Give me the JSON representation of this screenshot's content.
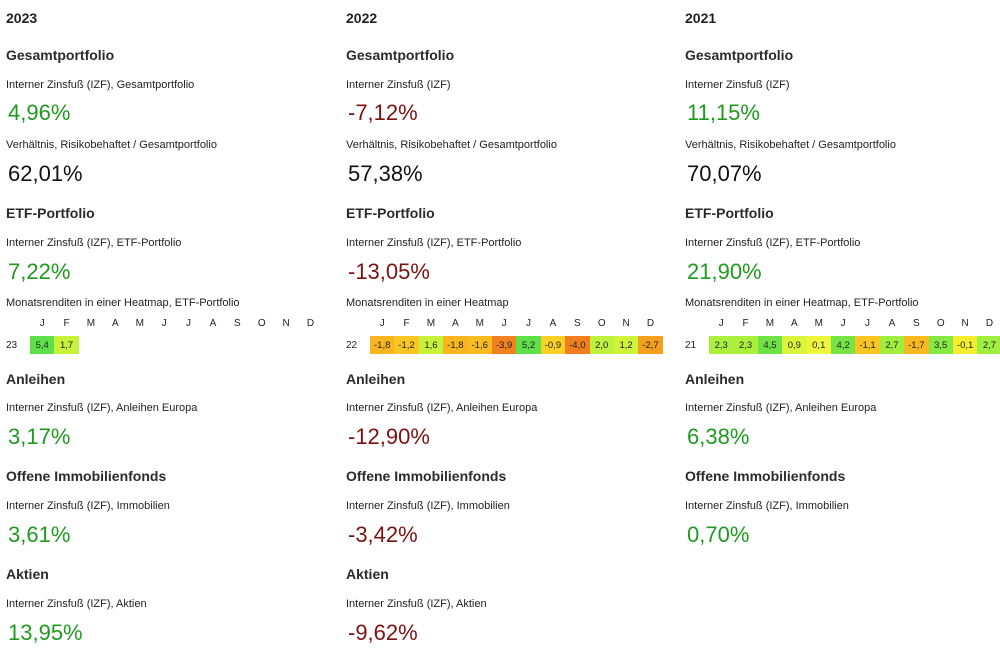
{
  "columns": [
    {
      "year": "2023",
      "sections": {
        "gesamt": {
          "heading": "Gesamtportfolio",
          "irr_label": "Interner Zinsfuß (IZF), Gesamtportfolio",
          "irr_value": "4,96%",
          "irr_color": "#1f9a1f",
          "ratio_label": "Verhältnis, Risikobehaftet / Gesamtportfolio",
          "ratio_value": "62,01%"
        },
        "etf": {
          "heading": "ETF-Portfolio",
          "irr_label": "Interner Zinsfuß (IZF), ETF-Portfolio",
          "irr_value": "7,22%",
          "irr_color": "#1f9a1f",
          "heatmap_label": "Monatsrenditen in einer Heatmap, ETF-Portfolio"
        },
        "anleihen": {
          "heading": "Anleihen",
          "irr_label": "Interner Zinsfuß (IZF), Anleihen Europa",
          "irr_value": "3,17%",
          "irr_color": "#1f9a1f"
        },
        "immobilien": {
          "heading": "Offene Immobilienfonds",
          "irr_label": "Interner Zinsfuß (IZF), Immobilien",
          "irr_value": "3,61%",
          "irr_color": "#1f9a1f"
        },
        "aktien": {
          "heading": "Aktien",
          "irr_label": "Interner Zinsfuß (IZF), Aktien",
          "irr_value": "13,95%",
          "irr_color": "#1f9a1f"
        }
      },
      "heatmap": {
        "year_label": "23",
        "cells": [
          {
            "value": "5,4",
            "color": "#5fe04a"
          },
          {
            "value": "1,7",
            "color": "#c6f23a"
          }
        ]
      }
    },
    {
      "year": "2022",
      "sections": {
        "gesamt": {
          "heading": "Gesamtportfolio",
          "irr_label": "Interner Zinsfuß (IZF)",
          "irr_value": "-7,12%",
          "irr_color": "#7d1212",
          "ratio_label": "Verhältnis, Risikobehaftet / Gesamtportfolio",
          "ratio_value": "57,38%"
        },
        "etf": {
          "heading": "ETF-Portfolio",
          "irr_label": "Interner Zinsfuß (IZF), ETF-Portfolio",
          "irr_value": "-13,05%",
          "irr_color": "#7d1212",
          "heatmap_label": "Monatsrenditen in einer Heatmap"
        },
        "anleihen": {
          "heading": "Anleihen",
          "irr_label": "Interner Zinsfuß (IZF), Anleihen Europa",
          "irr_value": "-12,90%",
          "irr_color": "#7d1212"
        },
        "immobilien": {
          "heading": "Offene Immobilienfonds",
          "irr_label": "Interner Zinsfuß (IZF), Immobilien",
          "irr_value": "-3,42%",
          "irr_color": "#7d1212"
        },
        "aktien": {
          "heading": "Aktien",
          "irr_label": "Interner Zinsfuß (IZF), Aktien",
          "irr_value": "-9,62%",
          "irr_color": "#7d1212"
        }
      },
      "heatmap": {
        "year_label": "22",
        "cells": [
          {
            "value": "-1,8",
            "color": "#f7b51f"
          },
          {
            "value": "-1,2",
            "color": "#f9c722"
          },
          {
            "value": "1,6",
            "color": "#c7f23a"
          },
          {
            "value": "-1,8",
            "color": "#f7b51f"
          },
          {
            "value": "-1,6",
            "color": "#f8bb20"
          },
          {
            "value": "-3,9",
            "color": "#f28220"
          },
          {
            "value": "5,2",
            "color": "#5fe04a"
          },
          {
            "value": "-0,9",
            "color": "#fad024"
          },
          {
            "value": "-4,0",
            "color": "#f27f1f"
          },
          {
            "value": "2,0",
            "color": "#bff03b"
          },
          {
            "value": "1,2",
            "color": "#cff23a"
          },
          {
            "value": "-2,7",
            "color": "#f59f1f"
          }
        ]
      }
    },
    {
      "year": "2021",
      "sections": {
        "gesamt": {
          "heading": "Gesamtportfolio",
          "irr_label": "Interner Zinsfuß (IZF)",
          "irr_value": "11,15%",
          "irr_color": "#1f9a1f",
          "ratio_label": "Verhältnis, Risikobehaftet / Gesamtportfolio",
          "ratio_value": "70,07%"
        },
        "etf": {
          "heading": "ETF-Portfolio",
          "irr_label": "Interner Zinsfuß (IZF), ETF-Portfolio",
          "irr_value": "21,90%",
          "irr_color": "#1f9a1f",
          "heatmap_label": "Monatsrenditen in einer Heatmap, ETF-Portfolio"
        },
        "anleihen": {
          "heading": "Anleihen",
          "irr_label": "Interner Zinsfuß (IZF), Anleihen Europa",
          "irr_value": "6,38%",
          "irr_color": "#1f9a1f"
        },
        "immobilien": {
          "heading": "Offene Immobilienfonds",
          "irr_label": "Interner Zinsfuß (IZF), Immobilien",
          "irr_value": "0,70%",
          "irr_color": "#1f9a1f"
        }
      },
      "heatmap": {
        "year_label": "21",
        "cells": [
          {
            "value": "2,3",
            "color": "#aaf03c"
          },
          {
            "value": "2,3",
            "color": "#aaf03c"
          },
          {
            "value": "4,5",
            "color": "#6fe345"
          },
          {
            "value": "0,9",
            "color": "#dcf43a"
          },
          {
            "value": "0,1",
            "color": "#eef63a"
          },
          {
            "value": "4,2",
            "color": "#75e444"
          },
          {
            "value": "-1,1",
            "color": "#f9c522"
          },
          {
            "value": "2,7",
            "color": "#a0ee3d"
          },
          {
            "value": "-1,7",
            "color": "#f8b81f"
          },
          {
            "value": "3,5",
            "color": "#86e842"
          },
          {
            "value": "-0,1",
            "color": "#f4ee2e"
          },
          {
            "value": "2,7",
            "color": "#a0ee3d"
          }
        ]
      }
    }
  ],
  "months": [
    "J",
    "F",
    "M",
    "A",
    "M",
    "J",
    "J",
    "A",
    "S",
    "O",
    "N",
    "D"
  ]
}
